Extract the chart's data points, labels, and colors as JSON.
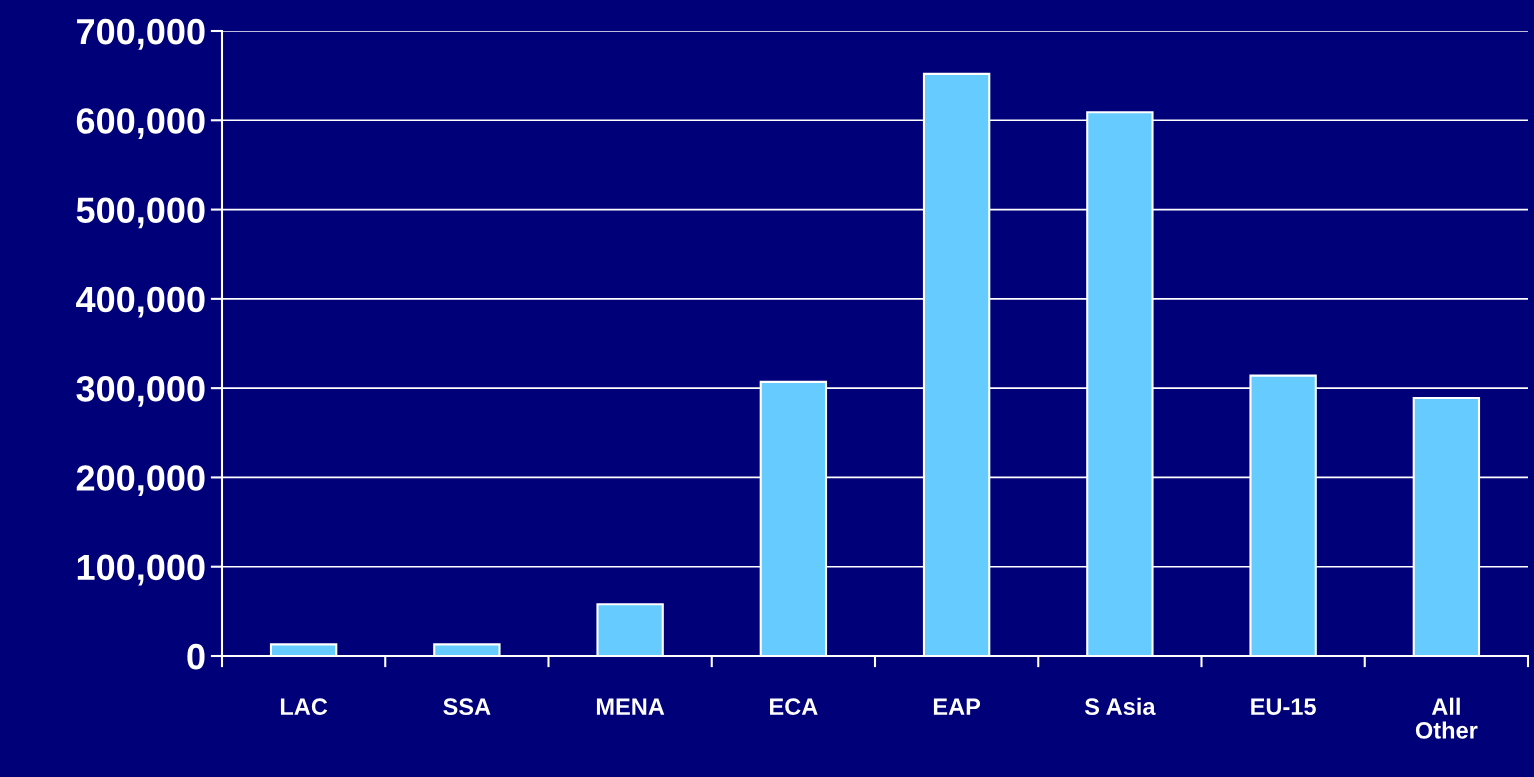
{
  "chart_data": {
    "type": "bar",
    "categories": [
      "LAC",
      "SSA",
      "MENA",
      "ECA",
      "EAP",
      "S Asia",
      "EU-15",
      "All\nOther"
    ],
    "values": [
      13000,
      13000,
      58000,
      307000,
      652000,
      609000,
      314000,
      289000
    ],
    "color": "#66ccff",
    "ylim": [
      0,
      700000
    ],
    "yticks": [
      {
        "value": 0,
        "label": "0"
      },
      {
        "value": 100000,
        "label": "100,000"
      },
      {
        "value": 200000,
        "label": "200,000"
      },
      {
        "value": 300000,
        "label": "300,000"
      },
      {
        "value": 400000,
        "label": "400,000"
      },
      {
        "value": 500000,
        "label": "500,000"
      },
      {
        "value": 600000,
        "label": "600,000"
      },
      {
        "value": 700000,
        "label": "700,000"
      }
    ],
    "grid": "y",
    "legend": false
  }
}
